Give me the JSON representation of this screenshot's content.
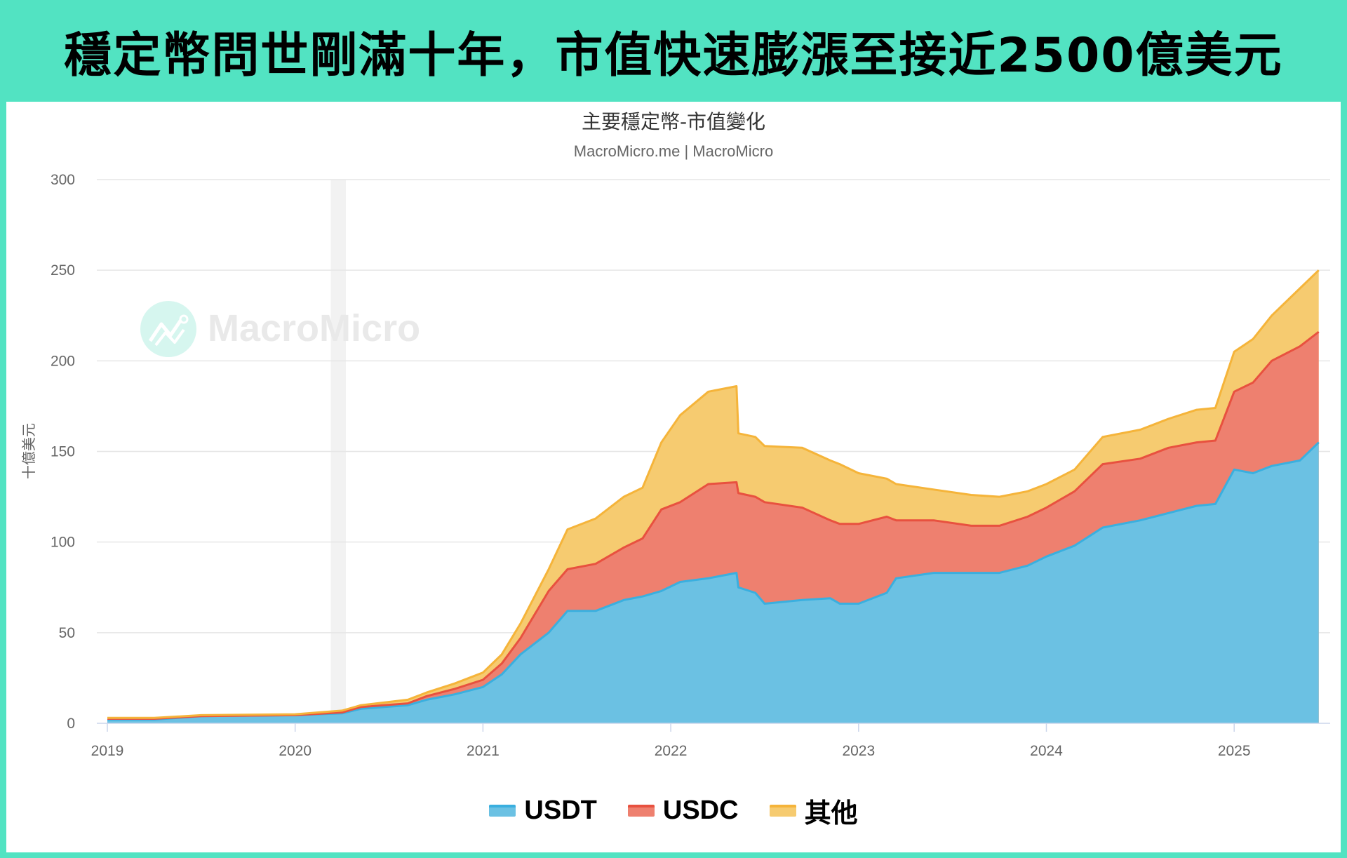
{
  "headline": "穩定幣問世剛滿十年，市值快速膨漲至接近2500億美元",
  "colors": {
    "frame": "#52e3c2",
    "usdt_fill": "#6bc1e3",
    "usdt_line": "#3aafdf",
    "usdc_fill": "#ee806f",
    "usdc_line": "#e8513f",
    "other_fill": "#f6cb70",
    "other_line": "#f5b43a"
  },
  "watermark": "MacroMicro",
  "chart_data": {
    "type": "area",
    "stacked": true,
    "title": "主要穩定幣-市值變化",
    "subtitle": "MacroMicro.me | MacroMicro",
    "xlabel": "",
    "ylabel": "十億美元",
    "ylim": [
      0,
      300
    ],
    "yticks": [
      0,
      50,
      100,
      150,
      200,
      250,
      300
    ],
    "xticks": [
      "2019",
      "2020",
      "2021",
      "2022",
      "2023",
      "2024",
      "2025"
    ],
    "grid": true,
    "legend_position": "bottom",
    "shaded_band": {
      "x_start": 2020.19,
      "x_end": 2020.27
    },
    "x": [
      2019.0,
      2019.25,
      2019.5,
      2020.0,
      2020.25,
      2020.35,
      2020.6,
      2020.7,
      2020.85,
      2021.0,
      2021.1,
      2021.2,
      2021.35,
      2021.45,
      2021.6,
      2021.75,
      2021.85,
      2021.95,
      2022.05,
      2022.2,
      2022.35,
      2022.36,
      2022.45,
      2022.5,
      2022.7,
      2022.85,
      2022.9,
      2023.0,
      2023.15,
      2023.2,
      2023.4,
      2023.6,
      2023.75,
      2023.9,
      2024.0,
      2024.15,
      2024.3,
      2024.5,
      2024.65,
      2024.8,
      2024.9,
      2025.0,
      2025.1,
      2025.2,
      2025.35,
      2025.45
    ],
    "series": [
      {
        "name": "USDT",
        "values": [
          2,
          2,
          4,
          4.5,
          5.5,
          8,
          10,
          13,
          16,
          20,
          27,
          38,
          50,
          62,
          62,
          68,
          70,
          73,
          78,
          80,
          83,
          75,
          72,
          66,
          68,
          69,
          66,
          66,
          72,
          80,
          83,
          83,
          83,
          87,
          92,
          98,
          108,
          112,
          116,
          120,
          121,
          140,
          138,
          142,
          145,
          155
        ]
      },
      {
        "name": "USDC",
        "values": [
          0.5,
          0.5,
          0,
          0,
          0.5,
          1,
          1,
          2,
          3,
          4,
          6,
          9,
          23,
          23,
          26,
          29,
          32,
          45,
          44,
          52,
          50,
          52,
          53,
          56,
          51,
          43,
          44,
          44,
          42,
          32,
          29,
          26,
          26,
          27,
          27,
          30,
          35,
          34,
          36,
          35,
          35,
          43,
          50,
          58,
          63,
          61
        ]
      },
      {
        "name": "其他",
        "values": [
          0.5,
          0.5,
          0.5,
          0.5,
          1,
          1,
          2,
          2,
          3,
          4,
          5,
          8,
          12,
          22,
          25,
          28,
          28,
          37,
          48,
          51,
          53,
          33,
          33,
          31,
          33,
          33,
          33,
          28,
          21,
          20,
          17,
          17,
          16,
          14,
          13,
          12,
          15,
          16,
          16,
          18,
          18,
          22,
          24,
          25,
          32,
          34
        ]
      }
    ]
  },
  "legend": [
    {
      "label": "USDT"
    },
    {
      "label": "USDC"
    },
    {
      "label": "其他"
    }
  ]
}
